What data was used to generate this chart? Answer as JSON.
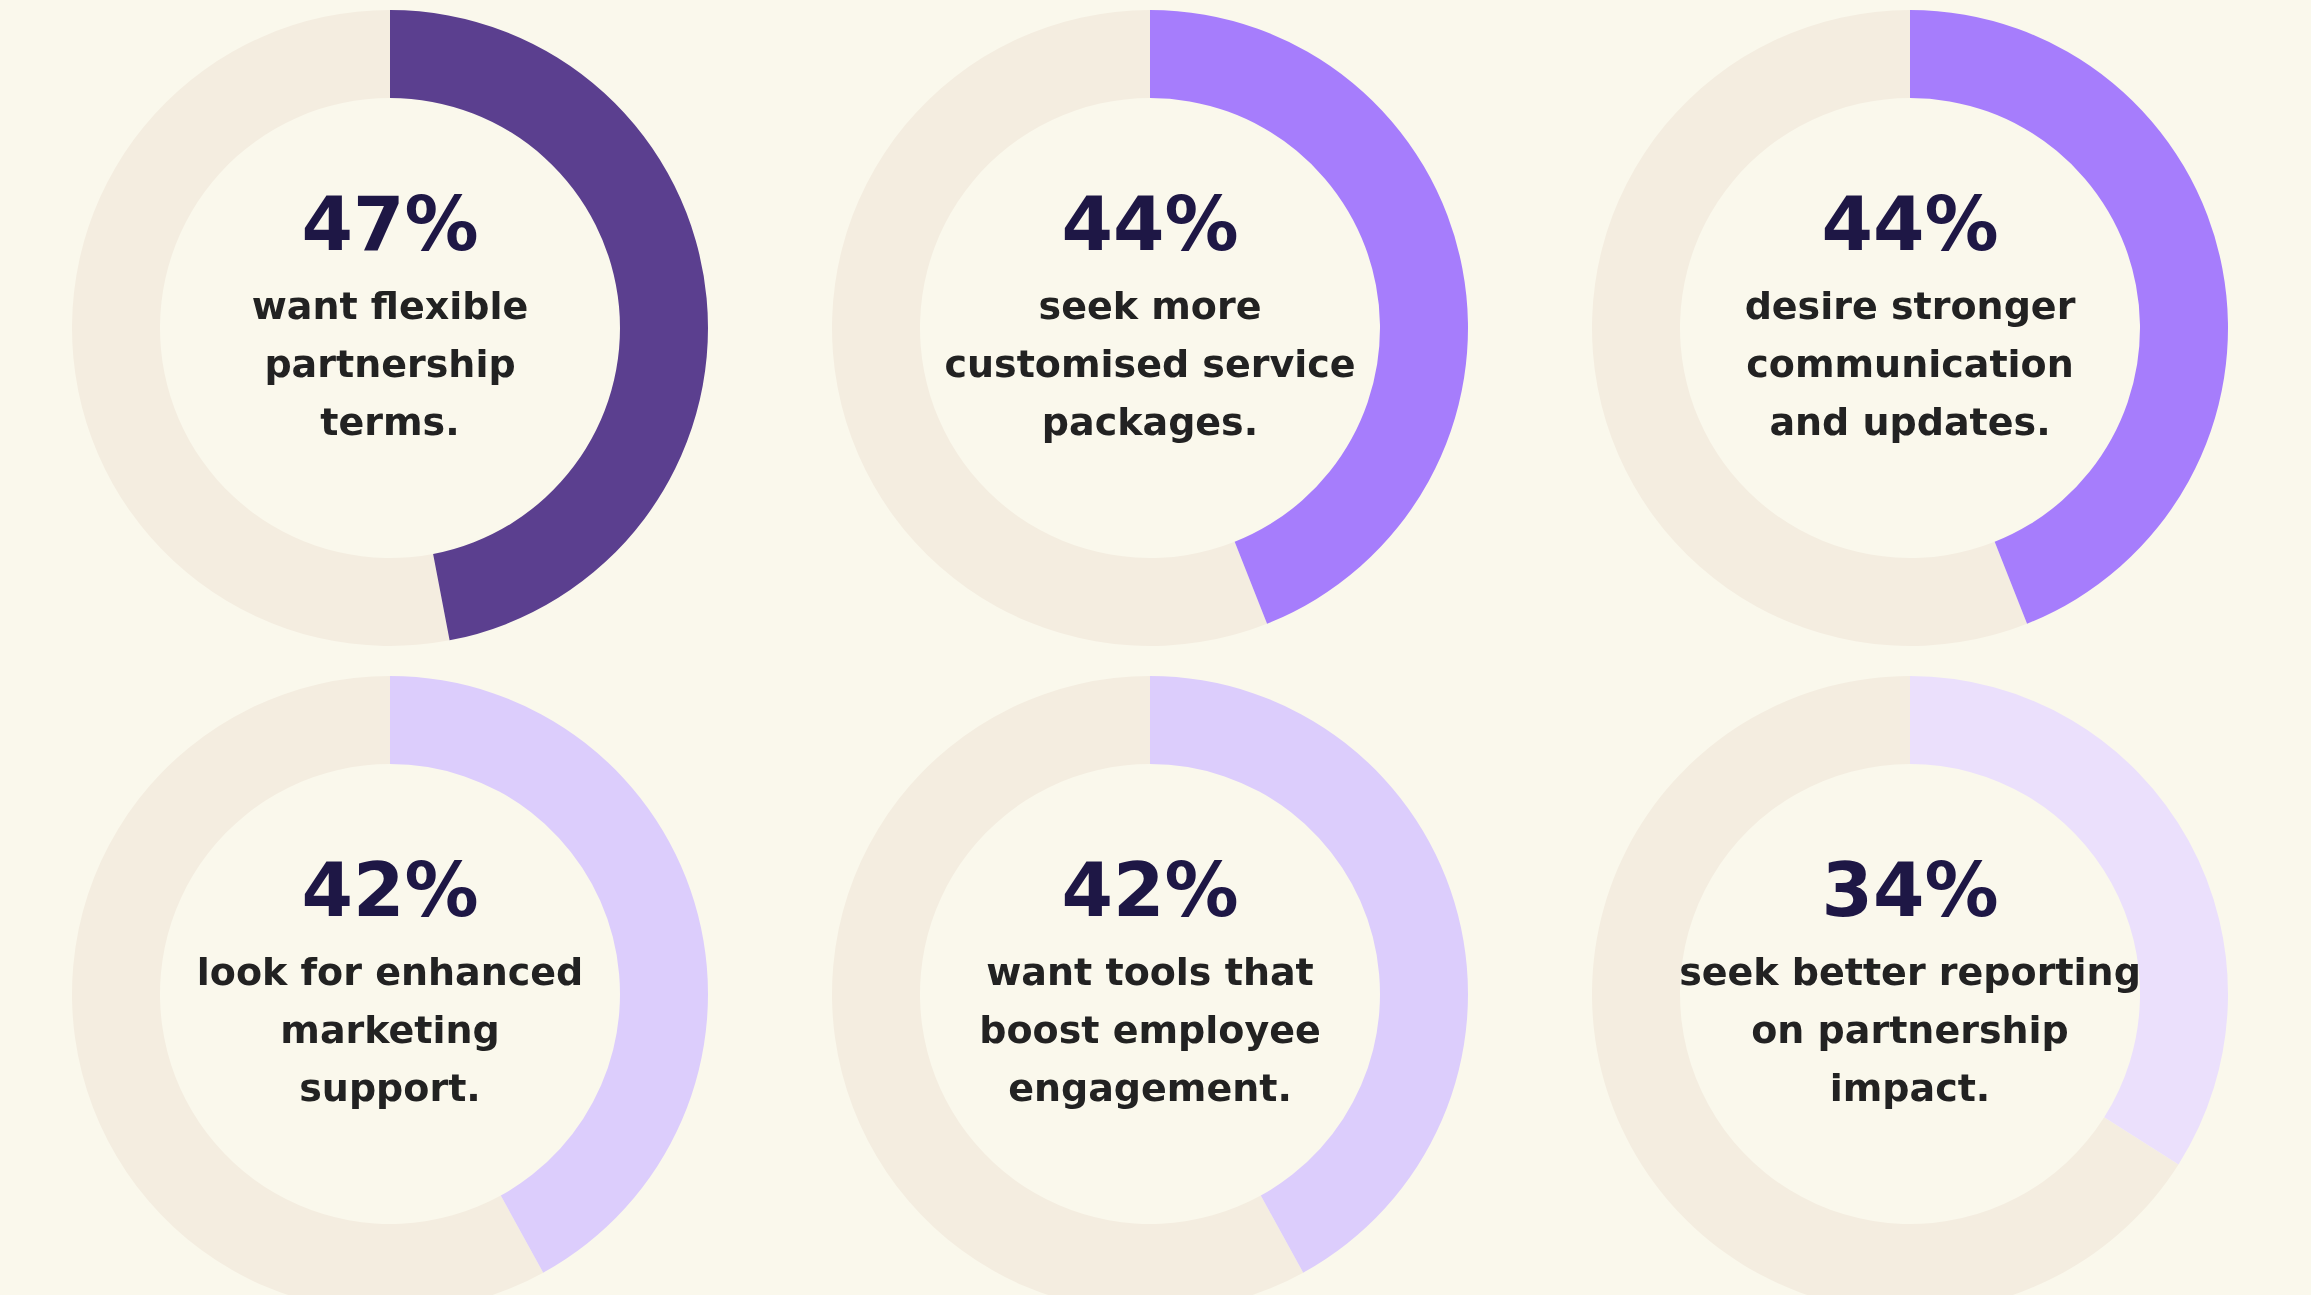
{
  "chart_data": [
    {
      "type": "donut",
      "title": "want flexible\npartnership\nterms.",
      "categories": [
        null,
        null
      ],
      "values": [
        47,
        53
      ],
      "colors": [
        "#5b3f8f",
        "#f4ede0"
      ],
      "value_labels": [
        "47%",
        null
      ]
    },
    {
      "type": "donut",
      "title": "seek more\ncustomised service\npackages.",
      "categories": [
        null,
        null
      ],
      "values": [
        44,
        56
      ],
      "colors": [
        "#a67dfc",
        "#f4ede0"
      ],
      "value_labels": [
        "44%",
        null
      ]
    },
    {
      "type": "donut",
      "title": "desire stronger\ncommunication\nand updates.",
      "categories": [
        null,
        null
      ],
      "values": [
        44,
        56
      ],
      "colors": [
        "#a67dfc",
        "#f4ede0"
      ],
      "value_labels": [
        "44%",
        null
      ]
    },
    {
      "type": "donut",
      "title": "look for enhanced\nmarketing\nsupport.",
      "categories": [
        null,
        null
      ],
      "values": [
        42,
        58
      ],
      "colors": [
        "#dccdfc",
        "#f4ede0"
      ],
      "value_labels": [
        "42%",
        null
      ]
    },
    {
      "type": "donut",
      "title": "want tools that\nboost employee\nengagement.",
      "categories": [
        null,
        null
      ],
      "values": [
        42,
        58
      ],
      "colors": [
        "#dccdfc",
        "#f4ede0"
      ],
      "value_labels": [
        "42%",
        null
      ]
    },
    {
      "type": "donut",
      "title": "seek better reporting\non partnership\nimpact.",
      "categories": [
        null,
        null
      ],
      "values": [
        34,
        66
      ],
      "colors": [
        "#ebe0fc",
        "#f4ede0"
      ],
      "value_labels": [
        "34%",
        null
      ]
    }
  ]
}
